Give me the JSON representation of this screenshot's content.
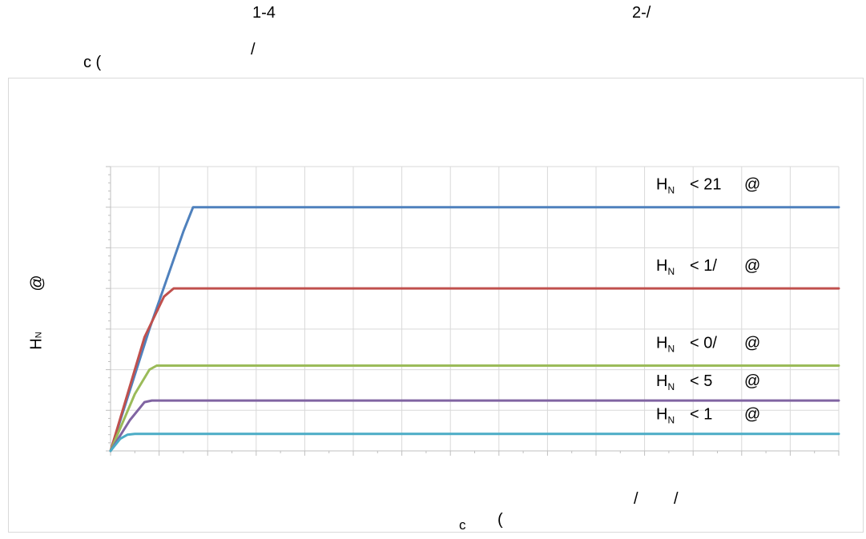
{
  "top_text": {
    "a": "1-4",
    "b": "2-/",
    "c": "c (",
    "d": "/"
  },
  "chart_data": {
    "type": "line",
    "title": "",
    "xlabel": {
      "a": "c",
      "b": "(",
      "c": "/",
      "d": "/"
    },
    "ylabel": {
      "a": "@",
      "b": "H",
      "c": "N"
    },
    "grid": true,
    "legend": "inline-right",
    "ylim": [
      0,
      35
    ],
    "xlim": [
      0,
      15
    ],
    "series": [
      {
        "name": "H N < 21 @",
        "label_main": "H",
        "label_sub": "N",
        "label_val": "< 21",
        "label_unit": "@",
        "color": "#4f81bd",
        "points": [
          [
            0,
            0
          ],
          [
            0.8,
            15
          ],
          [
            1.5,
            27
          ],
          [
            1.7,
            30
          ],
          [
            1.9,
            30
          ],
          [
            15,
            30
          ]
        ]
      },
      {
        "name": "H N < 1/ @",
        "label_main": "H",
        "label_sub": "N",
        "label_val": "< 1/",
        "label_unit": "@",
        "color": "#c0504d",
        "points": [
          [
            0,
            0
          ],
          [
            0.7,
            14
          ],
          [
            1.1,
            19
          ],
          [
            1.3,
            20
          ],
          [
            15,
            20
          ]
        ]
      },
      {
        "name": "H N < 0/ @",
        "label_main": "H",
        "label_sub": "N",
        "label_val": "< 0/",
        "label_unit": "@",
        "color": "#9bbb59",
        "points": [
          [
            0,
            0
          ],
          [
            0.5,
            7
          ],
          [
            0.8,
            10
          ],
          [
            0.95,
            10.5
          ],
          [
            15,
            10.5
          ]
        ]
      },
      {
        "name": "H N < 5 @",
        "label_main": "H",
        "label_sub": "N",
        "label_val": "< 5",
        "label_unit": "@",
        "color": "#8064a2",
        "points": [
          [
            0,
            0
          ],
          [
            0.4,
            3.8
          ],
          [
            0.7,
            6
          ],
          [
            0.85,
            6.2
          ],
          [
            15,
            6.2
          ]
        ]
      },
      {
        "name": "H N < 1 @",
        "label_main": "H",
        "label_sub": "N",
        "label_val": "< 1",
        "label_unit": "@",
        "color": "#4bacc6",
        "points": [
          [
            0,
            0
          ],
          [
            0.2,
            1.5
          ],
          [
            0.35,
            2.0
          ],
          [
            0.5,
            2.1
          ],
          [
            15,
            2.1
          ]
        ]
      }
    ]
  }
}
